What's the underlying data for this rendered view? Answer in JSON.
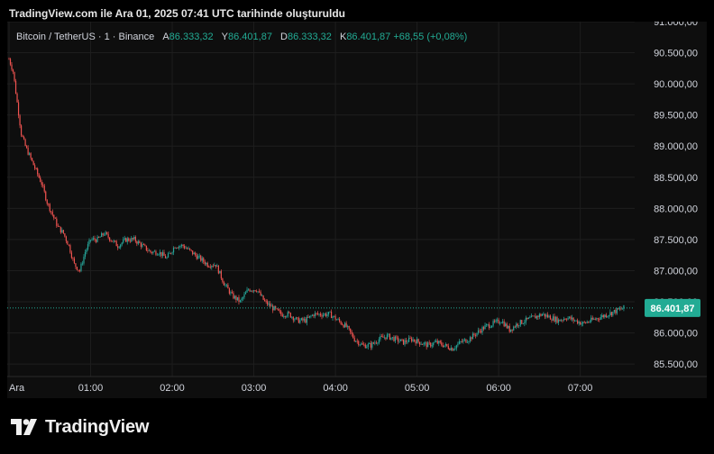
{
  "caption": "TradingView.com ile Ara 01, 2025 07:41 UTC tarihinde oluşturuldu",
  "legend": {
    "symbol": "Bitcoin / TetherUS · 1 · Binance",
    "open_label": "A",
    "open_value": "86.333,32",
    "high_label": "Y",
    "high_value": "86.401,87",
    "low_label": "D",
    "low_value": "86.333,32",
    "close_label": "K",
    "close_value": "86.401,87",
    "change": "+68,55 (+0,08%)"
  },
  "brand": "TradingView",
  "colors": {
    "up": "#26a69a",
    "down": "#ef5350",
    "grid": "#1e1e1e",
    "axis_text": "#d1d4dc",
    "price_tag": "#22ab94"
  },
  "chart_data": {
    "type": "candlestick",
    "symbol": "BTCUSDT",
    "interval": "1",
    "ylim": [
      85300,
      91000
    ],
    "y_ticks": [
      85500,
      86000,
      86500,
      87000,
      87500,
      88000,
      88500,
      89000,
      89500,
      90000,
      90500,
      91000
    ],
    "y_tick_labels": [
      "85.500,00",
      "86.000,00",
      "86.500,00",
      "87.000,00",
      "87.500,00",
      "88.000,00",
      "88.500,00",
      "89.000,00",
      "89.500,00",
      "90.000,00",
      "90.500,00",
      "91.000,00"
    ],
    "x_ticks": [
      0,
      60,
      120,
      180,
      240,
      300,
      360,
      420
    ],
    "x_tick_labels": [
      "Ara",
      "01:00",
      "02:00",
      "03:00",
      "04:00",
      "05:00",
      "06:00",
      "07:00"
    ],
    "last_price": 86401.87,
    "last_price_label": "86.401,87",
    "price_path": [
      [
        0,
        90400
      ],
      [
        3,
        90200
      ],
      [
        6,
        89700
      ],
      [
        9,
        89200
      ],
      [
        12,
        89000
      ],
      [
        16,
        88800
      ],
      [
        20,
        88600
      ],
      [
        24,
        88400
      ],
      [
        28,
        88100
      ],
      [
        32,
        87900
      ],
      [
        36,
        87700
      ],
      [
        40,
        87600
      ],
      [
        44,
        87400
      ],
      [
        48,
        87100
      ],
      [
        52,
        87000
      ],
      [
        56,
        87300
      ],
      [
        60,
        87500
      ],
      [
        65,
        87500
      ],
      [
        70,
        87600
      ],
      [
        75,
        87500
      ],
      [
        80,
        87400
      ],
      [
        86,
        87500
      ],
      [
        92,
        87500
      ],
      [
        98,
        87400
      ],
      [
        104,
        87300
      ],
      [
        110,
        87300
      ],
      [
        116,
        87200
      ],
      [
        122,
        87400
      ],
      [
        128,
        87400
      ],
      [
        134,
        87300
      ],
      [
        140,
        87200
      ],
      [
        146,
        87100
      ],
      [
        152,
        87100
      ],
      [
        158,
        86800
      ],
      [
        164,
        86600
      ],
      [
        170,
        86500
      ],
      [
        176,
        86700
      ],
      [
        182,
        86700
      ],
      [
        188,
        86500
      ],
      [
        194,
        86400
      ],
      [
        200,
        86300
      ],
      [
        206,
        86300
      ],
      [
        212,
        86200
      ],
      [
        218,
        86200
      ],
      [
        224,
        86300
      ],
      [
        230,
        86300
      ],
      [
        236,
        86300
      ],
      [
        242,
        86200
      ],
      [
        248,
        86100
      ],
      [
        254,
        85900
      ],
      [
        260,
        85800
      ],
      [
        266,
        85800
      ],
      [
        272,
        85900
      ],
      [
        278,
        85950
      ],
      [
        284,
        85900
      ],
      [
        290,
        85850
      ],
      [
        296,
        85900
      ],
      [
        302,
        85850
      ],
      [
        308,
        85800
      ],
      [
        314,
        85850
      ],
      [
        320,
        85800
      ],
      [
        326,
        85750
      ],
      [
        332,
        85850
      ],
      [
        338,
        85900
      ],
      [
        344,
        86000
      ],
      [
        350,
        86100
      ],
      [
        356,
        86150
      ],
      [
        362,
        86200
      ],
      [
        368,
        86050
      ],
      [
        374,
        86150
      ],
      [
        380,
        86200
      ],
      [
        386,
        86250
      ],
      [
        392,
        86300
      ],
      [
        398,
        86250
      ],
      [
        404,
        86200
      ],
      [
        410,
        86250
      ],
      [
        416,
        86200
      ],
      [
        422,
        86150
      ],
      [
        428,
        86200
      ],
      [
        434,
        86250
      ],
      [
        440,
        86300
      ],
      [
        446,
        86350
      ],
      [
        452,
        86400
      ]
    ]
  }
}
